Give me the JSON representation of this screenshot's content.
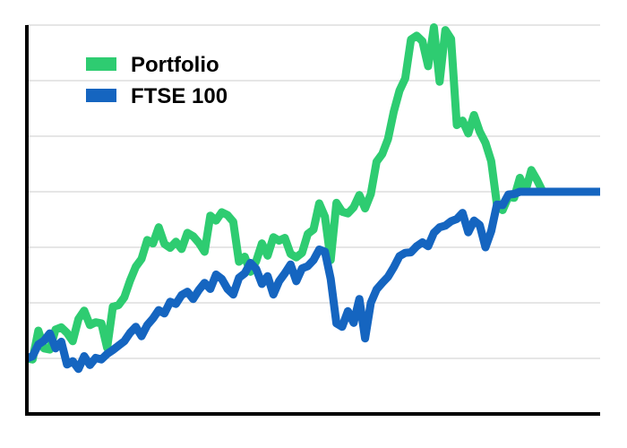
{
  "chart_data": {
    "type": "line",
    "title": "",
    "xlabel": "",
    "ylabel": "",
    "grid": true,
    "legend_position": "top-left",
    "ylim": [
      0,
      7
    ],
    "yticks": [
      0,
      1,
      2,
      3,
      4,
      5,
      6,
      7
    ],
    "xlim": [
      0,
      100
    ],
    "x": [
      0,
      1,
      2,
      3,
      4,
      5,
      6,
      7,
      8,
      9,
      10,
      11,
      12,
      13,
      14,
      15,
      16,
      17,
      18,
      19,
      20,
      21,
      22,
      23,
      24,
      25,
      26,
      27,
      28,
      29,
      30,
      31,
      32,
      33,
      34,
      35,
      36,
      37,
      38,
      39,
      40,
      41,
      42,
      43,
      44,
      45,
      46,
      47,
      48,
      49,
      50,
      51,
      52,
      53,
      54,
      55,
      56,
      57,
      58,
      59,
      60,
      61,
      62,
      63,
      64,
      65,
      66,
      67,
      68,
      69,
      70,
      71,
      72,
      73,
      74,
      75,
      76,
      77,
      78,
      79,
      80,
      81,
      82,
      83,
      84,
      85,
      86,
      87,
      88,
      89,
      90,
      91,
      92,
      93,
      94,
      95,
      96,
      97,
      98,
      99,
      100
    ],
    "series": [
      {
        "name": "Portfolio",
        "color": "#2ecc71",
        "values": [
          1.0,
          0.98,
          1.5,
          1.18,
          1.16,
          1.52,
          1.56,
          1.46,
          1.31,
          1.71,
          1.86,
          1.6,
          1.65,
          1.63,
          1.19,
          1.93,
          1.96,
          2.1,
          2.4,
          2.65,
          2.79,
          3.13,
          3.07,
          3.36,
          3.06,
          2.99,
          3.1,
          2.97,
          3.26,
          3.2,
          3.08,
          2.92,
          3.57,
          3.48,
          3.63,
          3.58,
          3.46,
          2.74,
          2.83,
          2.56,
          2.75,
          3.07,
          2.85,
          3.18,
          3.12,
          3.17,
          2.88,
          2.82,
          2.9,
          3.24,
          3.32,
          3.79,
          3.55,
          2.77,
          3.8,
          3.64,
          3.61,
          3.72,
          3.94,
          3.7,
          3.96,
          4.54,
          4.68,
          4.95,
          5.44,
          5.82,
          6.04,
          6.74,
          6.81,
          6.71,
          6.26,
          6.96,
          5.98,
          6.91,
          6.75,
          5.2,
          5.28,
          5.05,
          5.38,
          5.08,
          4.88,
          4.55,
          3.77,
          3.67,
          3.91,
          3.89,
          4.25,
          4.02,
          4.39,
          4.21,
          4.0,
          4.0,
          4.0,
          4.0,
          4.0,
          4.0,
          4.0,
          4.0,
          4.0,
          4.0,
          4.0
        ]
      },
      {
        "name": "FTSE 100",
        "color": "#1565c0",
        "values": [
          1.0,
          1.04,
          1.25,
          1.32,
          1.45,
          1.18,
          1.3,
          0.89,
          0.95,
          0.81,
          1.04,
          0.88,
          1.01,
          0.98,
          1.08,
          1.15,
          1.23,
          1.31,
          1.46,
          1.57,
          1.4,
          1.6,
          1.72,
          1.87,
          1.81,
          2.02,
          1.98,
          2.14,
          2.2,
          2.07,
          2.23,
          2.36,
          2.25,
          2.51,
          2.43,
          2.25,
          2.15,
          2.45,
          2.53,
          2.72,
          2.61,
          2.34,
          2.48,
          2.15,
          2.39,
          2.53,
          2.69,
          2.39,
          2.62,
          2.66,
          2.77,
          2.96,
          2.92,
          2.43,
          1.63,
          1.57,
          1.85,
          1.64,
          2.07,
          1.36,
          2.0,
          2.24,
          2.36,
          2.47,
          2.64,
          2.84,
          2.9,
          2.91,
          3.02,
          3.09,
          3.02,
          3.26,
          3.36,
          3.39,
          3.47,
          3.51,
          3.62,
          3.27,
          3.48,
          3.4,
          3.0,
          3.29,
          3.77,
          3.76,
          3.95,
          3.96,
          4.0,
          4.0,
          4.0,
          4.0,
          4.0,
          4.0,
          4.0,
          4.0,
          4.0,
          4.0,
          4.0,
          4.0,
          4.0,
          4.0,
          4.0
        ]
      }
    ]
  }
}
